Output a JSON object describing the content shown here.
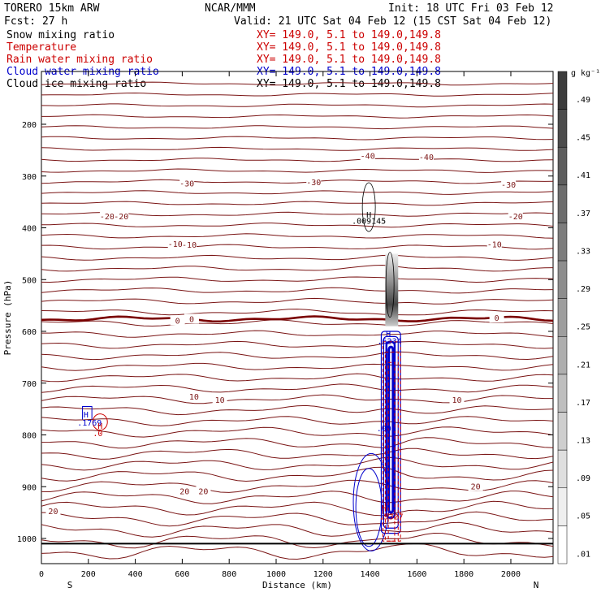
{
  "header": {
    "model": "TORERO  15km ARW",
    "center": "NCAR/MMM",
    "init": "Init: 18 UTC Fri 03 Feb 12",
    "fcst": "Fcst:    27 h",
    "valid": "Valid: 21 UTC Sat 04 Feb 12 (15 CST Sat 04 Feb 12)"
  },
  "fields": [
    {
      "name": "Snow mixing ratio",
      "xy": "",
      "color": "#000000"
    },
    {
      "name": "Temperature",
      "xy": "XY= 149.0,  5.1 to 149.0,149.8",
      "color": "#cc0000"
    },
    {
      "name": "Rain water mixing ratio",
      "xy": "XY= 149.0,  5.1 to 149.0,149.8",
      "color": "#cc0000"
    },
    {
      "name": "Cloud water mixing ratio",
      "xy": "XY= 149.0,  5.1 to 149.0,149.8",
      "color": "#0000cc"
    },
    {
      "name": "Cloud ice mixing ratio",
      "xy": "XY= 149.0,  5.1 to 149.0,149.8",
      "color": "#000000"
    }
  ],
  "first_xy": "XY= 149.0,  5.1 to 149.0,149.8",
  "chart_data": {
    "type": "contour",
    "xlabel": "Distance (km)",
    "ylabel": "Pressure (hPa)",
    "xlim": [
      0,
      2180
    ],
    "ylim": [
      1050,
      100
    ],
    "x_ticks": [
      0,
      200,
      400,
      600,
      800,
      1000,
      1200,
      1400,
      1600,
      1800,
      2000
    ],
    "y_ticks": [
      200,
      300,
      400,
      500,
      600,
      700,
      800,
      900,
      1000
    ],
    "x_end_labels": {
      "left": "S",
      "right": "N"
    },
    "temperature_labels": [
      {
        "value": "-40",
        "x": 1390,
        "p": 262
      },
      {
        "value": "-40",
        "x": 1640,
        "p": 264
      },
      {
        "value": "-30",
        "x": 620,
        "p": 315
      },
      {
        "value": "-30",
        "x": 1160,
        "p": 313
      },
      {
        "value": "-30",
        "x": 1990,
        "p": 318
      },
      {
        "value": "-20",
        "x": 280,
        "p": 379
      },
      {
        "value": "-20",
        "x": 340,
        "p": 379
      },
      {
        "value": "-20",
        "x": 2020,
        "p": 379
      },
      {
        "value": "-10",
        "x": 570,
        "p": 432
      },
      {
        "value": "-10",
        "x": 630,
        "p": 434
      },
      {
        "value": "-10",
        "x": 1930,
        "p": 433
      },
      {
        "value": "0",
        "x": 580,
        "p": 580
      },
      {
        "value": "0",
        "x": 640,
        "p": 577
      },
      {
        "value": "0",
        "x": 1940,
        "p": 575
      },
      {
        "value": "10",
        "x": 650,
        "p": 727
      },
      {
        "value": "10",
        "x": 760,
        "p": 733
      },
      {
        "value": "10",
        "x": 1770,
        "p": 733
      },
      {
        "value": "20",
        "x": 610,
        "p": 910
      },
      {
        "value": "20",
        "x": 690,
        "p": 910
      },
      {
        "value": "20",
        "x": 1850,
        "p": 900
      },
      {
        "value": "20",
        "x": 50,
        "p": 948
      }
    ],
    "annotations": [
      {
        "text": "H",
        "x": 1395,
        "p": 374,
        "color": "#000000"
      },
      {
        "text": ".009145",
        "x": 1395,
        "p": 386,
        "color": "#000000"
      },
      {
        "text": "H",
        "x": 1478,
        "p": 604,
        "color": "#0000cc"
      },
      {
        "text": ".6234",
        "x": 1483,
        "p": 618,
        "color": "#0000cc"
      },
      {
        "text": "H",
        "x": 190,
        "p": 760,
        "color": "#0000cc"
      },
      {
        "text": ".1769",
        "x": 205,
        "p": 776,
        "color": "#0000cc"
      },
      {
        "text": "H",
        "x": 250,
        "p": 782,
        "color": "#cc0000"
      },
      {
        "text": ".0",
        "x": 240,
        "p": 796,
        "color": "#cc0000"
      },
      {
        "text": ".001",
        "x": 1470,
        "p": 787,
        "color": "#0000cc"
      },
      {
        "text": "H",
        "x": 1460,
        "p": 940,
        "color": "#cc0000"
      },
      {
        "text": ".5327",
        "x": 1490,
        "p": 957,
        "color": "#cc0000"
      }
    ],
    "colorbar": {
      "units": "g kg⁻¹",
      "labels": [
        ".49",
        ".45",
        ".41",
        ".37",
        ".33",
        ".29",
        ".25",
        ".21",
        ".17",
        ".13",
        ".09",
        ".05",
        ".01"
      ]
    },
    "ground_pressure": 1010,
    "freezing_level_p": 576
  },
  "colors": {
    "temperature": "#7a1414",
    "freezing": "#7a0000",
    "cloud_water": "#0000cc",
    "rain": "#cc0000",
    "ground": "#000000"
  }
}
